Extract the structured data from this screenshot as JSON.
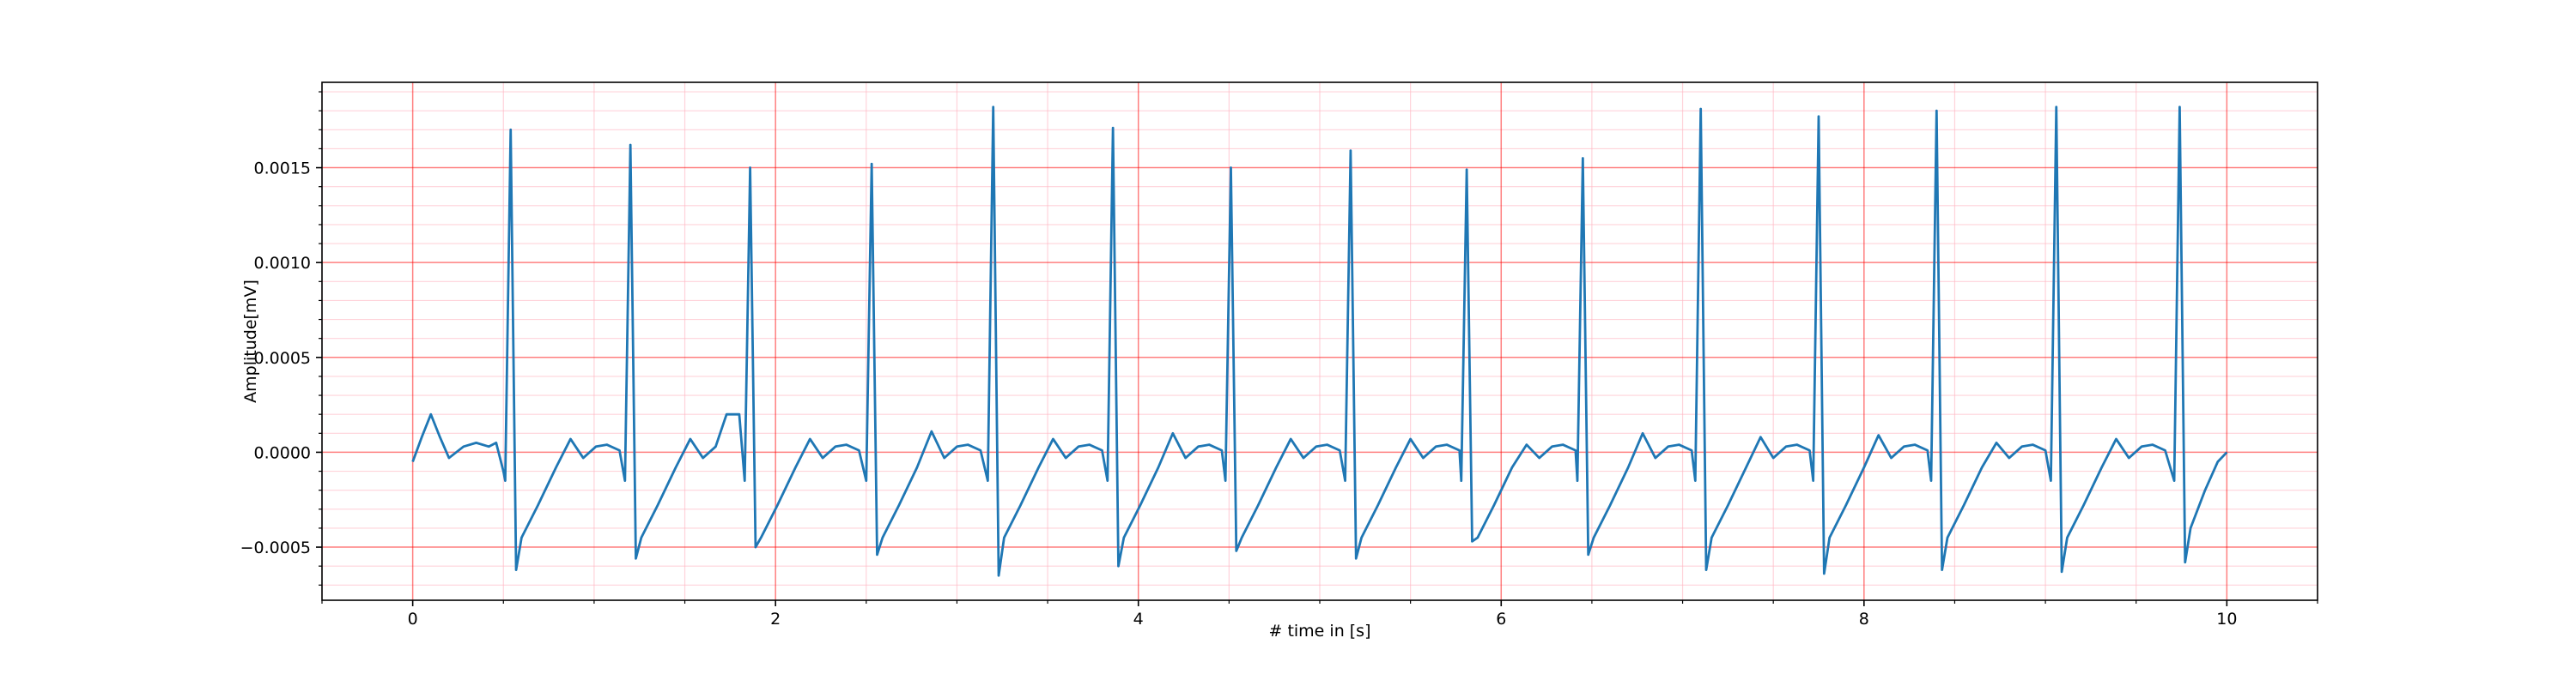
{
  "chart_data": {
    "type": "line",
    "xlabel": "# time in [s]",
    "ylabel": "Amplitude[mV]",
    "color": "#1f77b4",
    "grid": true,
    "xlim": [
      -0.5,
      10.5
    ],
    "ylim": [
      -0.00078,
      0.00195
    ],
    "xticks": [
      0,
      2,
      4,
      6,
      8,
      10
    ],
    "yticks": [
      {
        "value": -0.0005,
        "label": "−0.0005"
      },
      {
        "value": 0,
        "label": "0.0000"
      },
      0.0005,
      {
        "value": 0.001,
        "label": "0.0010"
      },
      0.0015
    ],
    "xminor_ticks": [
      -0.5,
      0.5,
      1,
      1.5,
      2.5,
      3,
      3.5,
      4.5,
      5,
      5.5,
      6.5,
      7,
      7.5,
      8.5,
      9,
      9.5,
      10.5
    ],
    "yminor_ticks": [
      -0.0007,
      -0.0006,
      -0.0004,
      -0.0003,
      -0.0002,
      -0.0001,
      0.0001,
      0.0002,
      0.0003,
      0.0004,
      0.0006,
      0.0007,
      0.0008,
      0.0009,
      0.0011,
      0.0012,
      0.0013,
      0.0014,
      0.0016,
      0.0017,
      0.0018,
      0.0019
    ],
    "x": [
      0,
      0.05,
      0.1,
      0.15,
      0.2,
      0.28,
      0.35,
      0.42,
      0.46,
      0.5,
      0.51,
      0.54,
      0.57,
      0.6,
      0.69,
      0.79,
      0.87,
      0.94,
      1.01,
      1.07,
      1.14,
      1.17,
      1.2,
      1.23,
      1.26,
      1.35,
      1.45,
      1.53,
      1.6,
      1.67,
      1.73,
      1.8,
      1.83,
      1.86,
      1.89,
      1.92,
      2.01,
      2.11,
      2.19,
      2.26,
      2.33,
      2.39,
      2.46,
      2.5,
      2.53,
      2.56,
      2.59,
      2.68,
      2.78,
      2.86,
      2.93,
      3.0,
      3.06,
      3.13,
      3.17,
      3.2,
      3.23,
      3.26,
      3.35,
      3.45,
      3.53,
      3.6,
      3.67,
      3.73,
      3.8,
      3.83,
      3.86,
      3.89,
      3.92,
      4.01,
      4.11,
      4.19,
      4.26,
      4.33,
      4.39,
      4.46,
      4.48,
      4.51,
      4.54,
      4.57,
      4.66,
      4.76,
      4.84,
      4.91,
      4.98,
      5.04,
      5.11,
      5.14,
      5.17,
      5.2,
      5.23,
      5.32,
      5.42,
      5.5,
      5.57,
      5.64,
      5.7,
      5.77,
      5.78,
      5.81,
      5.84,
      5.87,
      5.96,
      6.06,
      6.14,
      6.21,
      6.28,
      6.34,
      6.41,
      6.42,
      6.45,
      6.48,
      6.51,
      6.6,
      6.7,
      6.78,
      6.85,
      6.92,
      6.98,
      7.05,
      7.07,
      7.1,
      7.13,
      7.16,
      7.25,
      7.35,
      7.43,
      7.5,
      7.57,
      7.63,
      7.7,
      7.72,
      7.75,
      7.78,
      7.81,
      7.9,
      8.0,
      8.08,
      8.15,
      8.22,
      8.28,
      8.35,
      8.37,
      8.4,
      8.43,
      8.46,
      8.55,
      8.65,
      8.73,
      8.8,
      8.87,
      8.93,
      9.0,
      9.03,
      9.06,
      9.09,
      9.12,
      9.21,
      9.31,
      9.39,
      9.46,
      9.53,
      9.59,
      9.66,
      9.71,
      9.74,
      9.77,
      9.8,
      9.88,
      9.95,
      10.0
    ],
    "values": [
      -5e-05,
      8e-05,
      0.0002,
      8e-05,
      -3e-05,
      3e-05,
      5e-05,
      3e-05,
      5e-05,
      -0.0001,
      -0.00015,
      0.0017,
      -0.00062,
      -0.00045,
      -0.00028,
      -8e-05,
      7e-05,
      -3e-05,
      3e-05,
      4e-05,
      1e-05,
      -0.00015,
      0.00162,
      -0.00056,
      -0.00045,
      -0.00028,
      -8e-05,
      7e-05,
      -3e-05,
      3e-05,
      0.0002,
      0.0002,
      -0.00015,
      0.0015,
      -0.0005,
      -0.00045,
      -0.00028,
      -8e-05,
      7e-05,
      -3e-05,
      3e-05,
      4e-05,
      1e-05,
      -0.00015,
      0.00152,
      -0.00054,
      -0.00045,
      -0.00028,
      -8e-05,
      0.00011,
      -3e-05,
      3e-05,
      4e-05,
      1e-05,
      -0.00015,
      0.00182,
      -0.00065,
      -0.00045,
      -0.00028,
      -8e-05,
      7e-05,
      -3e-05,
      3e-05,
      4e-05,
      1e-05,
      -0.00015,
      0.00171,
      -0.0006,
      -0.00045,
      -0.00028,
      -8e-05,
      0.0001,
      -3e-05,
      3e-05,
      4e-05,
      1e-05,
      -0.00015,
      0.0015,
      -0.00052,
      -0.00045,
      -0.00028,
      -8e-05,
      7e-05,
      -3e-05,
      3e-05,
      4e-05,
      1e-05,
      -0.00015,
      0.00159,
      -0.00056,
      -0.00045,
      -0.00028,
      -8e-05,
      7e-05,
      -3e-05,
      3e-05,
      4e-05,
      1e-05,
      -0.00015,
      0.00149,
      -0.00047,
      -0.00045,
      -0.00028,
      -8e-05,
      4e-05,
      -3e-05,
      3e-05,
      4e-05,
      1e-05,
      -0.00015,
      0.00155,
      -0.00054,
      -0.00045,
      -0.00028,
      -8e-05,
      0.0001,
      -3e-05,
      3e-05,
      4e-05,
      1e-05,
      -0.00015,
      0.00181,
      -0.00062,
      -0.00045,
      -0.00028,
      -8e-05,
      8e-05,
      -3e-05,
      3e-05,
      4e-05,
      1e-05,
      -0.00015,
      0.00177,
      -0.00064,
      -0.00045,
      -0.00028,
      -8e-05,
      9e-05,
      -3e-05,
      3e-05,
      4e-05,
      1e-05,
      -0.00015,
      0.0018,
      -0.00062,
      -0.00045,
      -0.00028,
      -8e-05,
      5e-05,
      -3e-05,
      3e-05,
      4e-05,
      1e-05,
      -0.00015,
      0.00182,
      -0.00063,
      -0.00045,
      -0.00028,
      -8e-05,
      7e-05,
      -3e-05,
      3e-05,
      4e-05,
      1e-05,
      -0.00015,
      0.00182,
      -0.00058,
      -0.0004,
      -0.0002,
      -5e-05,
      0.0
    ]
  }
}
